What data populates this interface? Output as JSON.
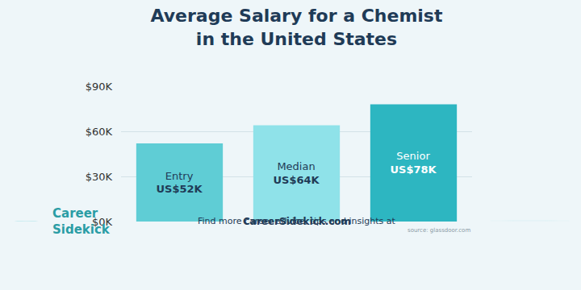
{
  "chart_data": {
    "type": "bar",
    "title": [
      "Average Salary for a Chemist",
      "in the United States"
    ],
    "categories": [
      "Entry",
      "Median",
      "Senior"
    ],
    "values": [
      52,
      64,
      78
    ],
    "value_labels": [
      "US$52K",
      "US$64K",
      "US$78K"
    ],
    "colors": [
      "#5fcdd5",
      "#8fe2e9",
      "#2db6c1"
    ],
    "ylim": [
      0,
      90
    ],
    "yticks": [
      {
        "value": 0,
        "label": "$0K"
      },
      {
        "value": 30,
        "label": "$30K"
      },
      {
        "value": 60,
        "label": "$60K"
      },
      {
        "value": 90,
        "label": "$90K"
      }
    ],
    "grid": true,
    "data_labels": true,
    "tick_labels": "y",
    "source": "source: glassdoor.com",
    "footer": [
      "Find more career advice, tips and insights at",
      "CareerSidekick.com"
    ],
    "brand": [
      "Career",
      "Sidekick"
    ]
  }
}
